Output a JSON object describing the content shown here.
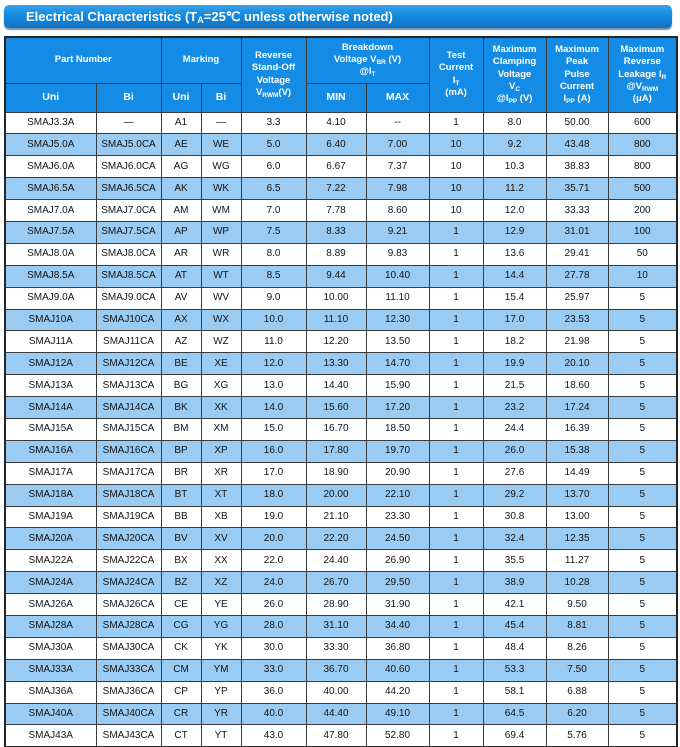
{
  "title": {
    "pre": "Electrical Characteristics (T",
    "sub": "A",
    "post": "=25℃  unless otherwise noted)"
  },
  "colors": {
    "header_blue": "#148CE6",
    "row_alt_blue": "#9ACBF3",
    "border": "#3b3b3b",
    "title_bar_top": "#39a2ea",
    "title_bar_mid": "#1489de",
    "title_bar_bottom": "#0d72c4"
  },
  "header": {
    "part_number": "Part Number",
    "marking": "Marking",
    "uni": "Uni",
    "bi": "Bi",
    "min": "MIN",
    "max": "MAX",
    "standoff": {
      "l1": "Reverse",
      "l2": "Stand-Off",
      "l3": "Voltage",
      "sym": "V",
      "sub": "RWM",
      "unit": "(V)"
    },
    "breakdown": {
      "l1": "Breakdown",
      "l2": "Voltage",
      "sym": "V",
      "sub": "BR",
      "unit": "(V)",
      "at": "@I",
      "at_sub": "T"
    },
    "test_current": {
      "l1": "Test",
      "l2": "Current",
      "sym": "I",
      "sub": "T",
      "unit": "(mA)"
    },
    "clamping": {
      "l1": "Maximum",
      "l2": "Clamping",
      "l3": "Voltage",
      "sym": "V",
      "sub": "C",
      "at": "@I",
      "at_sub": "PP",
      "unit": "(V)"
    },
    "peak_pulse": {
      "l1": "Maximum",
      "l2": "Peak",
      "l3": "Pulse",
      "l4": "Current",
      "sym": "I",
      "sub": "PP",
      "unit": "(A)"
    },
    "leakage": {
      "l1": "Maximum",
      "l2": "Reverse",
      "l3": "Leakage",
      "sym": "I",
      "sub": "R",
      "at": "@V",
      "at_sub": "RWM",
      "unit": "(μA)"
    }
  },
  "table": {
    "rows": [
      [
        "SMAJ3.3A",
        "—",
        "A1",
        "—",
        "3.3",
        "4.10",
        "--",
        "1",
        "8.0",
        "50.00",
        "600"
      ],
      [
        "SMAJ5.0A",
        "SMAJ5.0CA",
        "AE",
        "WE",
        "5.0",
        "6.40",
        "7.00",
        "10",
        "9.2",
        "43.48",
        "800"
      ],
      [
        "SMAJ6.0A",
        "SMAJ6.0CA",
        "AG",
        "WG",
        "6.0",
        "6.67",
        "7.37",
        "10",
        "10.3",
        "38.83",
        "800"
      ],
      [
        "SMAJ6.5A",
        "SMAJ6.5CA",
        "AK",
        "WK",
        "6.5",
        "7.22",
        "7.98",
        "10",
        "11.2",
        "35.71",
        "500"
      ],
      [
        "SMAJ7.0A",
        "SMAJ7.0CA",
        "AM",
        "WM",
        "7.0",
        "7.78",
        "8.60",
        "10",
        "12.0",
        "33.33",
        "200"
      ],
      [
        "SMAJ7.5A",
        "SMAJ7.5CA",
        "AP",
        "WP",
        "7.5",
        "8.33",
        "9.21",
        "1",
        "12.9",
        "31.01",
        "100"
      ],
      [
        "SMAJ8.0A",
        "SMAJ8.0CA",
        "AR",
        "WR",
        "8.0",
        "8.89",
        "9.83",
        "1",
        "13.6",
        "29.41",
        "50"
      ],
      [
        "SMAJ8.5A",
        "SMAJ8.5CA",
        "AT",
        "WT",
        "8.5",
        "9.44",
        "10.40",
        "1",
        "14.4",
        "27.78",
        "10"
      ],
      [
        "SMAJ9.0A",
        "SMAJ9.0CA",
        "AV",
        "WV",
        "9.0",
        "10.00",
        "11.10",
        "1",
        "15.4",
        "25.97",
        "5"
      ],
      [
        "SMAJ10A",
        "SMAJ10CA",
        "AX",
        "WX",
        "10.0",
        "11.10",
        "12.30",
        "1",
        "17.0",
        "23.53",
        "5"
      ],
      [
        "SMAJ11A",
        "SMAJ11CA",
        "AZ",
        "WZ",
        "11.0",
        "12.20",
        "13.50",
        "1",
        "18.2",
        "21.98",
        "5"
      ],
      [
        "SMAJ12A",
        "SMAJ12CA",
        "BE",
        "XE",
        "12.0",
        "13.30",
        "14.70",
        "1",
        "19.9",
        "20.10",
        "5"
      ],
      [
        "SMAJ13A",
        "SMAJ13CA",
        "BG",
        "XG",
        "13.0",
        "14.40",
        "15.90",
        "1",
        "21.5",
        "18.60",
        "5"
      ],
      [
        "SMAJ14A",
        "SMAJ14CA",
        "BK",
        "XK",
        "14.0",
        "15.60",
        "17.20",
        "1",
        "23.2",
        "17.24",
        "5"
      ],
      [
        "SMAJ15A",
        "SMAJ15CA",
        "BM",
        "XM",
        "15.0",
        "16.70",
        "18.50",
        "1",
        "24.4",
        "16.39",
        "5"
      ],
      [
        "SMAJ16A",
        "SMAJ16CA",
        "BP",
        "XP",
        "16.0",
        "17.80",
        "19.70",
        "1",
        "26.0",
        "15.38",
        "5"
      ],
      [
        "SMAJ17A",
        "SMAJ17CA",
        "BR",
        "XR",
        "17.0",
        "18.90",
        "20.90",
        "1",
        "27.6",
        "14.49",
        "5"
      ],
      [
        "SMAJ18A",
        "SMAJ18CA",
        "BT",
        "XT",
        "18.0",
        "20.00",
        "22.10",
        "1",
        "29.2",
        "13.70",
        "5"
      ],
      [
        "SMAJ19A",
        "SMAJ19CA",
        "BB",
        "XB",
        "19.0",
        "21.10",
        "23.30",
        "1",
        "30.8",
        "13.00",
        "5"
      ],
      [
        "SMAJ20A",
        "SMAJ20CA",
        "BV",
        "XV",
        "20.0",
        "22.20",
        "24.50",
        "1",
        "32.4",
        "12.35",
        "5"
      ],
      [
        "SMAJ22A",
        "SMAJ22CA",
        "BX",
        "XX",
        "22.0",
        "24.40",
        "26.90",
        "1",
        "35.5",
        "11.27",
        "5"
      ],
      [
        "SMAJ24A",
        "SMAJ24CA",
        "BZ",
        "XZ",
        "24.0",
        "26.70",
        "29.50",
        "1",
        "38.9",
        "10.28",
        "5"
      ],
      [
        "SMAJ26A",
        "SMAJ26CA",
        "CE",
        "YE",
        "26.0",
        "28.90",
        "31.90",
        "1",
        "42.1",
        "9.50",
        "5"
      ],
      [
        "SMAJ28A",
        "SMAJ28CA",
        "CG",
        "YG",
        "28.0",
        "31.10",
        "34.40",
        "1",
        "45.4",
        "8.81",
        "5"
      ],
      [
        "SMAJ30A",
        "SMAJ30CA",
        "CK",
        "YK",
        "30.0",
        "33.30",
        "36.80",
        "1",
        "48.4",
        "8.26",
        "5"
      ],
      [
        "SMAJ33A",
        "SMAJ33CA",
        "CM",
        "YM",
        "33.0",
        "36.70",
        "40.60",
        "1",
        "53.3",
        "7.50",
        "5"
      ],
      [
        "SMAJ36A",
        "SMAJ36CA",
        "CP",
        "YP",
        "36.0",
        "40.00",
        "44.20",
        "1",
        "58.1",
        "6.88",
        "5"
      ],
      [
        "SMAJ40A",
        "SMAJ40CA",
        "CR",
        "YR",
        "40.0",
        "44.40",
        "49.10",
        "1",
        "64.5",
        "6.20",
        "5"
      ],
      [
        "SMAJ43A",
        "SMAJ43CA",
        "CT",
        "YT",
        "43.0",
        "47.80",
        "52.80",
        "1",
        "69.4",
        "5.76",
        "5"
      ]
    ]
  }
}
